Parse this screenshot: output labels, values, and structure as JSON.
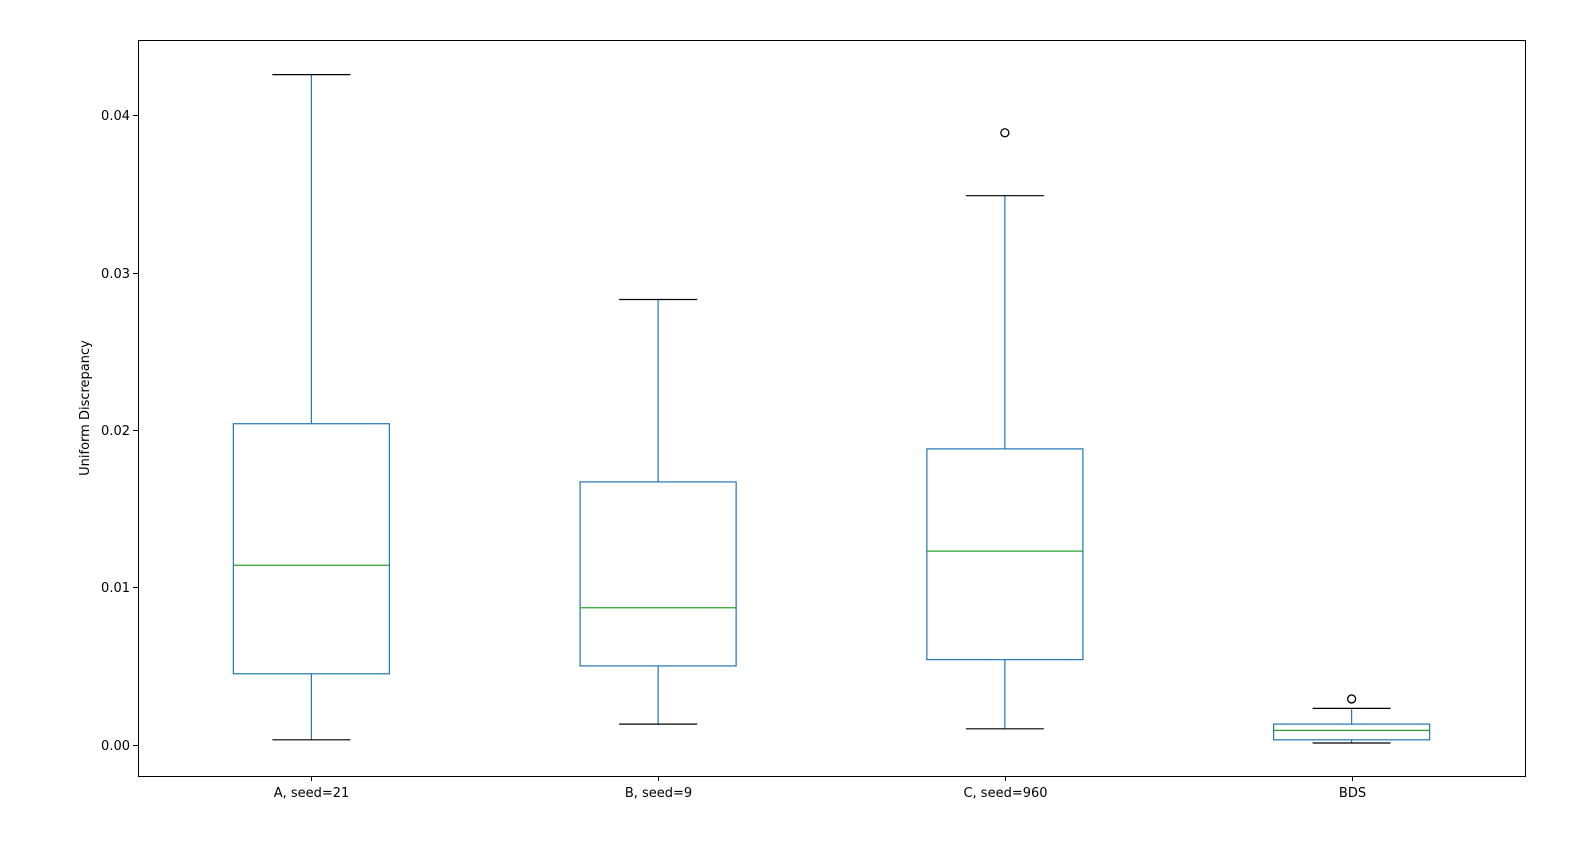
{
  "chart_data": {
    "type": "box",
    "title": "",
    "xlabel": "",
    "ylabel": "Uniform Discrepancy",
    "ylim": [
      -0.002,
      0.0448
    ],
    "yticks": [
      "0.00",
      "0.01",
      "0.02",
      "0.03",
      "0.04"
    ],
    "grid": false,
    "colors": {
      "box": "#1f77b4",
      "median": "#2ca02c",
      "cap": "#000000",
      "flier": "#000000"
    },
    "series": [
      {
        "category": "A, seed=21",
        "whisker_low": 0.0003,
        "q1": 0.0045,
        "median": 0.0114,
        "q3": 0.0204,
        "whisker_high": 0.0426,
        "outliers": []
      },
      {
        "category": "B, seed=9",
        "whisker_low": 0.0013,
        "q1": 0.005,
        "median": 0.0087,
        "q3": 0.0167,
        "whisker_high": 0.0283,
        "outliers": []
      },
      {
        "category": "C, seed=960",
        "whisker_low": 0.001,
        "q1": 0.0054,
        "median": 0.0123,
        "q3": 0.0188,
        "whisker_high": 0.0349,
        "outliers": [
          0.0389
        ]
      },
      {
        "category": "BDS",
        "whisker_low": 0.0001,
        "q1": 0.0003,
        "median": 0.0009,
        "q3": 0.0013,
        "whisker_high": 0.0023,
        "outliers": [
          0.0029
        ]
      }
    ]
  }
}
